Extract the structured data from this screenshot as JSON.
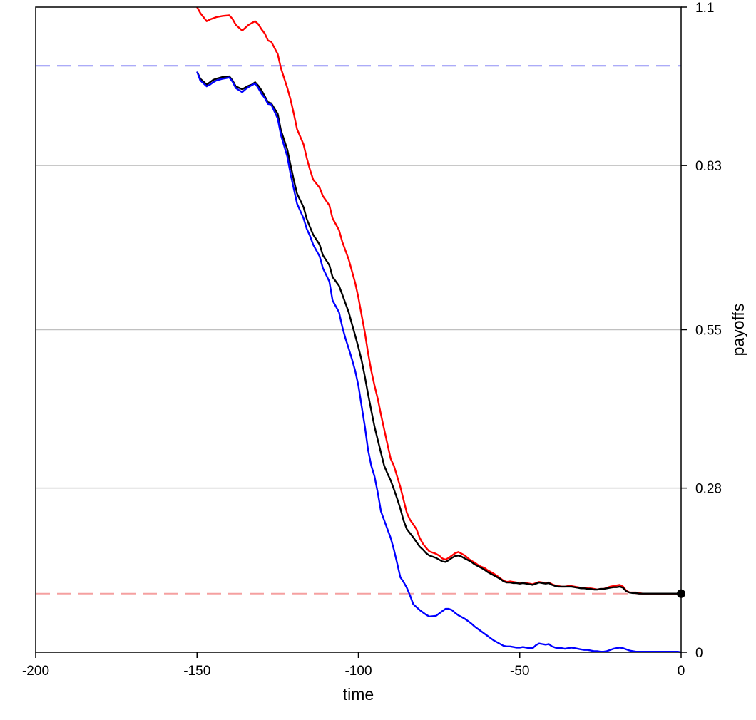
{
  "chart_data": {
    "type": "line",
    "xlabel": "time",
    "ylabel": "payoffs",
    "xlim": [
      -200,
      0
    ],
    "ylim": [
      0,
      1.1
    ],
    "xticks": [
      -200,
      -150,
      -100,
      -50,
      0
    ],
    "xtick_labels": [
      "-200",
      "-150",
      "-100",
      "-50",
      "0"
    ],
    "yticks": [
      0,
      0.28,
      0.55,
      0.83,
      1.1
    ],
    "ytick_labels": [
      "0",
      "0.28",
      "0.55",
      "0.83",
      "1.1"
    ],
    "y_axis_side": "right",
    "grid": {
      "horizontal": true,
      "lines_at": [
        0.28,
        0.55,
        0.83
      ],
      "color": "#c0c0c0"
    },
    "reference_lines": [
      {
        "y": 1.0,
        "color": "#8f8ff5",
        "style": "dashed"
      },
      {
        "y": 0.1,
        "color": "#f5a0a0",
        "style": "dashed"
      }
    ],
    "series": [
      {
        "color": "#ff0000",
        "x": [
          -150,
          -149,
          -147,
          -146,
          -145,
          -144,
          -142,
          -140,
          -139,
          -138,
          -136,
          -135,
          -134,
          -133,
          -132,
          -131,
          -130,
          -129,
          -128,
          -127,
          -125,
          -124,
          -122,
          -121,
          -120,
          -119,
          -117,
          -116,
          -115,
          -114,
          -112,
          -111,
          -109,
          -108,
          -106,
          -105,
          -104,
          -103,
          -102,
          -101,
          -100,
          -99,
          -98,
          -97,
          -96,
          -95,
          -94,
          -93,
          -92,
          -91,
          -90,
          -89,
          -88,
          -87,
          -86,
          -85,
          -84,
          -83,
          -82,
          -81,
          -80,
          -79,
          -78,
          -76,
          -75,
          -74,
          -73,
          -72,
          -71,
          -70,
          -69,
          -68,
          -67,
          -66,
          -65,
          -64,
          -63,
          -62,
          -61,
          -60,
          -59,
          -58,
          -57,
          -56,
          -55,
          -54,
          -53,
          -52,
          -51,
          -50,
          -49,
          -48,
          -47,
          -46,
          -45,
          -44,
          -43,
          -42,
          -41,
          -40,
          -39,
          -38,
          -37,
          -36,
          -35,
          -34,
          -33,
          -32,
          -31,
          -30,
          -29,
          -28,
          -27,
          -26,
          -25,
          -24,
          -23,
          -22,
          -21,
          -20,
          -19,
          -18,
          -17,
          -16,
          -15,
          -14,
          -13,
          -12,
          -11,
          -10,
          -9,
          -8,
          -7,
          -6,
          -5,
          -4,
          -3,
          -2,
          -1,
          0
        ],
        "y": [
          1.1,
          1.09,
          1.076,
          1.079,
          1.081,
          1.083,
          1.085,
          1.086,
          1.08,
          1.07,
          1.06,
          1.065,
          1.07,
          1.073,
          1.076,
          1.071,
          1.062,
          1.055,
          1.043,
          1.041,
          1.02,
          0.996,
          0.962,
          0.942,
          0.918,
          0.892,
          0.866,
          0.843,
          0.823,
          0.806,
          0.792,
          0.778,
          0.762,
          0.74,
          0.72,
          0.7,
          0.685,
          0.67,
          0.65,
          0.63,
          0.605,
          0.575,
          0.545,
          0.51,
          0.48,
          0.455,
          0.432,
          0.405,
          0.38,
          0.355,
          0.33,
          0.318,
          0.3,
          0.282,
          0.26,
          0.238,
          0.226,
          0.218,
          0.21,
          0.195,
          0.185,
          0.178,
          0.172,
          0.168,
          0.165,
          0.16,
          0.158,
          0.161,
          0.165,
          0.169,
          0.171,
          0.168,
          0.165,
          0.16,
          0.156,
          0.153,
          0.149,
          0.146,
          0.144,
          0.14,
          0.137,
          0.134,
          0.13,
          0.126,
          0.122,
          0.12,
          0.121,
          0.12,
          0.119,
          0.118,
          0.119,
          0.118,
          0.117,
          0.116,
          0.118,
          0.12,
          0.119,
          0.118,
          0.119,
          0.116,
          0.114,
          0.113,
          0.112,
          0.112,
          0.113,
          0.113,
          0.112,
          0.111,
          0.11,
          0.11,
          0.109,
          0.109,
          0.108,
          0.107,
          0.108,
          0.108,
          0.11,
          0.112,
          0.113,
          0.114,
          0.115,
          0.112,
          0.105,
          0.102,
          0.102,
          0.102,
          0.101,
          0.1,
          0.1,
          0.1,
          0.1,
          0.1,
          0.1,
          0.1,
          0.1,
          0.1,
          0.1,
          0.1,
          0.1,
          0.1
        ]
      },
      {
        "color": "#000000",
        "x": [
          -150,
          -149,
          -147,
          -146,
          -145,
          -144,
          -142,
          -140,
          -139,
          -138,
          -136,
          -135,
          -134,
          -133,
          -132,
          -131,
          -130,
          -129,
          -128,
          -127,
          -125,
          -124,
          -122,
          -121,
          -120,
          -119,
          -117,
          -116,
          -115,
          -114,
          -112,
          -111,
          -109,
          -108,
          -106,
          -105,
          -104,
          -103,
          -102,
          -101,
          -100,
          -99,
          -98,
          -97,
          -96,
          -95,
          -94,
          -93,
          -92,
          -91,
          -90,
          -89,
          -88,
          -87,
          -86,
          -85,
          -84,
          -83,
          -82,
          -81,
          -80,
          -79,
          -78,
          -76,
          -75,
          -74,
          -73,
          -72,
          -71,
          -70,
          -69,
          -68,
          -67,
          -66,
          -65,
          -64,
          -63,
          -62,
          -61,
          -60,
          -59,
          -58,
          -57,
          -56,
          -55,
          -54,
          -53,
          -52,
          -51,
          -50,
          -49,
          -48,
          -47,
          -46,
          -45,
          -44,
          -43,
          -42,
          -41,
          -40,
          -39,
          -38,
          -37,
          -36,
          -35,
          -34,
          -33,
          -32,
          -31,
          -30,
          -29,
          -28,
          -27,
          -26,
          -25,
          -24,
          -23,
          -22,
          -21,
          -20,
          -19,
          -18,
          -17,
          -16,
          -15,
          -14,
          -13,
          -12,
          -11,
          -10,
          -9,
          -8,
          -7,
          -6,
          -5,
          -4,
          -3,
          -2,
          -1,
          0
        ],
        "y": [
          0.99,
          0.978,
          0.968,
          0.972,
          0.976,
          0.978,
          0.981,
          0.982,
          0.975,
          0.965,
          0.96,
          0.963,
          0.966,
          0.968,
          0.972,
          0.966,
          0.958,
          0.948,
          0.938,
          0.936,
          0.918,
          0.89,
          0.857,
          0.83,
          0.805,
          0.782,
          0.759,
          0.739,
          0.725,
          0.712,
          0.695,
          0.677,
          0.66,
          0.64,
          0.625,
          0.61,
          0.595,
          0.58,
          0.56,
          0.54,
          0.52,
          0.498,
          0.47,
          0.44,
          0.412,
          0.385,
          0.362,
          0.34,
          0.318,
          0.305,
          0.293,
          0.278,
          0.262,
          0.245,
          0.225,
          0.21,
          0.203,
          0.196,
          0.188,
          0.18,
          0.175,
          0.169,
          0.165,
          0.161,
          0.158,
          0.155,
          0.154,
          0.157,
          0.161,
          0.164,
          0.165,
          0.163,
          0.16,
          0.157,
          0.154,
          0.15,
          0.147,
          0.144,
          0.141,
          0.137,
          0.134,
          0.131,
          0.128,
          0.125,
          0.121,
          0.119,
          0.119,
          0.118,
          0.118,
          0.117,
          0.118,
          0.117,
          0.116,
          0.115,
          0.117,
          0.119,
          0.118,
          0.117,
          0.118,
          0.115,
          0.113,
          0.112,
          0.112,
          0.112,
          0.112,
          0.112,
          0.111,
          0.11,
          0.109,
          0.109,
          0.108,
          0.108,
          0.107,
          0.107,
          0.108,
          0.108,
          0.109,
          0.11,
          0.111,
          0.111,
          0.112,
          0.11,
          0.104,
          0.102,
          0.101,
          0.101,
          0.1,
          0.1,
          0.1,
          0.1,
          0.1,
          0.1,
          0.1,
          0.1,
          0.1,
          0.1,
          0.1,
          0.1,
          0.1,
          0.1
        ]
      },
      {
        "color": "#0000ff",
        "x": [
          -150,
          -149,
          -147,
          -146,
          -145,
          -144,
          -142,
          -140,
          -139,
          -138,
          -136,
          -135,
          -134,
          -133,
          -132,
          -131,
          -130,
          -129,
          -128,
          -127,
          -125,
          -124,
          -122,
          -121,
          -120,
          -119,
          -117,
          -116,
          -115,
          -114,
          -112,
          -111,
          -109,
          -108,
          -106,
          -105,
          -104,
          -103,
          -102,
          -101,
          -100,
          -99,
          -98,
          -97,
          -96,
          -95,
          -94,
          -93,
          -92,
          -91,
          -90,
          -89,
          -88,
          -87,
          -86,
          -85,
          -84,
          -83,
          -82,
          -81,
          -80,
          -79,
          -78,
          -76,
          -75,
          -74,
          -73,
          -72,
          -71,
          -70,
          -69,
          -68,
          -67,
          -66,
          -65,
          -64,
          -63,
          -62,
          -61,
          -60,
          -59,
          -58,
          -57,
          -56,
          -55,
          -54,
          -53,
          -52,
          -51,
          -50,
          -49,
          -48,
          -47,
          -46,
          -45,
          -44,
          -43,
          -42,
          -41,
          -40,
          -39,
          -38,
          -37,
          -36,
          -35,
          -34,
          -33,
          -32,
          -31,
          -30,
          -29,
          -28,
          -27,
          -26,
          -25,
          -24,
          -23,
          -22,
          -21,
          -20,
          -19,
          -18,
          -17,
          -16,
          -15,
          -14,
          -13,
          -12,
          -11,
          -10,
          -9,
          -8,
          -7,
          -6,
          -5,
          -4,
          -3,
          -2,
          -1,
          0
        ],
        "y": [
          0.99,
          0.975,
          0.965,
          0.968,
          0.972,
          0.975,
          0.978,
          0.98,
          0.973,
          0.962,
          0.955,
          0.96,
          0.964,
          0.967,
          0.97,
          0.962,
          0.952,
          0.945,
          0.935,
          0.934,
          0.91,
          0.882,
          0.845,
          0.815,
          0.79,
          0.765,
          0.74,
          0.722,
          0.71,
          0.695,
          0.675,
          0.655,
          0.632,
          0.6,
          0.58,
          0.555,
          0.535,
          0.518,
          0.5,
          0.48,
          0.455,
          0.42,
          0.385,
          0.345,
          0.318,
          0.3,
          0.272,
          0.24,
          0.225,
          0.21,
          0.195,
          0.175,
          0.152,
          0.128,
          0.12,
          0.11,
          0.097,
          0.082,
          0.077,
          0.072,
          0.068,
          0.064,
          0.061,
          0.062,
          0.066,
          0.07,
          0.074,
          0.074,
          0.072,
          0.067,
          0.063,
          0.06,
          0.057,
          0.053,
          0.049,
          0.044,
          0.04,
          0.036,
          0.032,
          0.028,
          0.024,
          0.02,
          0.017,
          0.014,
          0.011,
          0.01,
          0.01,
          0.009,
          0.008,
          0.008,
          0.009,
          0.008,
          0.007,
          0.007,
          0.012,
          0.015,
          0.014,
          0.013,
          0.014,
          0.01,
          0.008,
          0.007,
          0.007,
          0.006,
          0.007,
          0.008,
          0.007,
          0.006,
          0.005,
          0.004,
          0.004,
          0.003,
          0.002,
          0.002,
          0.001,
          0.001,
          0.002,
          0.004,
          0.006,
          0.007,
          0.008,
          0.007,
          0.005,
          0.003,
          0.002,
          0.001,
          0.001,
          0.001,
          0.001,
          0.001,
          0.001,
          0.001,
          0.001,
          0.001,
          0.001,
          0.001,
          0.001,
          0.001,
          0.001,
          0
        ]
      }
    ],
    "end_point": {
      "x": 0,
      "y": 0.1,
      "color": "#000000"
    }
  }
}
